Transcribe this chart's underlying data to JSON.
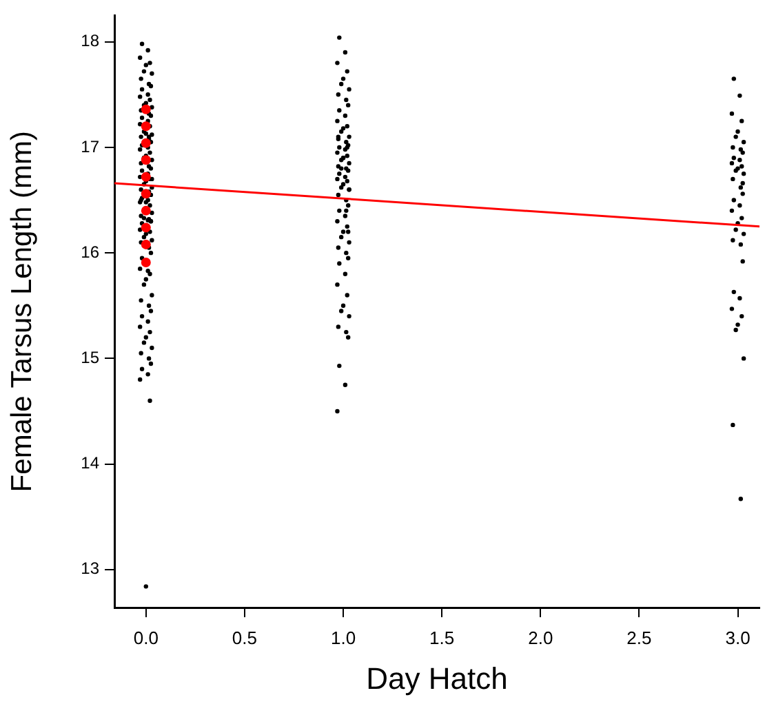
{
  "chart_data": {
    "type": "scatter",
    "xlabel": "Day Hatch",
    "ylabel": "Female Tarsus Length (mm)",
    "xlim": [
      -0.16,
      3.11
    ],
    "xticks": [
      {
        "value": 0,
        "label": "0.0"
      },
      {
        "value": 0.5,
        "label": "0.5"
      },
      {
        "value": 1,
        "label": "1.0"
      },
      {
        "value": 1.5,
        "label": "1.5"
      },
      {
        "value": 2,
        "label": "2.0"
      },
      {
        "value": 2.5,
        "label": "2.5"
      },
      {
        "value": 3,
        "label": "3.0"
      }
    ],
    "ylim": [
      12.64,
      18.25
    ],
    "yticks": [
      13,
      14,
      15,
      16,
      17,
      18
    ],
    "grid": false,
    "marker": "circle",
    "series": [
      {
        "color": "#000000",
        "x": [
          -0.02,
          0.01,
          -0.03,
          0.02,
          0.0,
          -0.01,
          0.03,
          -0.025,
          0.015,
          0.025,
          -0.02,
          0.01,
          -0.03,
          0.02,
          0.0,
          -0.01,
          0.03,
          -0.025,
          0.015,
          0.025,
          -0.02,
          0.01,
          -0.03,
          0.02,
          0.0,
          -0.01,
          0.03,
          -0.025,
          0.015,
          0.025,
          -0.02,
          0.01,
          -0.03,
          0.02,
          0.0,
          -0.01,
          0.03,
          -0.025,
          0.015,
          0.025,
          -0.02,
          0.01,
          -0.03,
          0.02,
          0.0,
          -0.01,
          0.03,
          -0.025,
          0.015,
          0.025,
          -0.02,
          0.01,
          -0.03,
          0.02,
          0.0,
          -0.01,
          0.03,
          -0.025,
          0.015,
          0.025,
          -0.02,
          0.01,
          -0.03,
          0.02,
          0.0,
          -0.01,
          0.03,
          -0.025,
          0.015,
          0.025,
          -0.02,
          0.01,
          -0.03,
          0.02,
          0.0,
          -0.01,
          0.03,
          -0.025,
          0.015,
          0.025,
          -0.02,
          0.01,
          -0.03,
          0.02,
          0.0,
          -0.01,
          0.03,
          -0.025,
          0.015,
          0.025,
          -0.02,
          0.01,
          -0.03,
          0.02,
          0.0,
          -0.01,
          0.03,
          -0.025,
          0.015,
          0.025
        ],
        "values": [
          17.98,
          17.92,
          17.85,
          17.8,
          17.78,
          17.72,
          17.7,
          17.65,
          17.6,
          17.58,
          17.55,
          17.5,
          17.48,
          17.45,
          17.42,
          17.4,
          17.38,
          17.35,
          17.32,
          17.3,
          17.28,
          17.25,
          17.22,
          17.2,
          17.13,
          17.15,
          17.12,
          17.1,
          17.08,
          17.05,
          17.02,
          17.0,
          16.98,
          16.95,
          16.92,
          16.9,
          16.88,
          16.85,
          16.82,
          16.8,
          16.78,
          16.75,
          16.72,
          16.7,
          16.68,
          16.65,
          16.62,
          16.6,
          16.58,
          16.55,
          16.52,
          16.5,
          16.48,
          16.45,
          16.48,
          16.33,
          16.38,
          16.35,
          16.32,
          16.3,
          16.28,
          16.31,
          16.22,
          16.2,
          16.18,
          16.15,
          16.12,
          16.1,
          16.05,
          16.0,
          15.95,
          15.83,
          15.85,
          15.8,
          15.75,
          15.7,
          15.6,
          15.55,
          15.5,
          15.45,
          15.4,
          15.35,
          15.3,
          15.25,
          15.2,
          15.15,
          15.1,
          15.05,
          15.0,
          14.95,
          14.9,
          14.85,
          14.8,
          14.6,
          12.84,
          16.9,
          16.7,
          16.5,
          17.1,
          16.3
        ]
      },
      {
        "color": "#000000",
        "x": [
          0.98,
          1.01,
          0.97,
          1.02,
          1.0,
          0.99,
          1.03,
          0.975,
          1.015,
          1.025,
          0.98,
          1.01,
          0.97,
          1.02,
          1.0,
          0.99,
          1.03,
          0.975,
          1.015,
          1.025,
          0.98,
          1.01,
          0.97,
          1.02,
          1.0,
          0.99,
          1.03,
          0.975,
          1.015,
          1.025,
          0.98,
          1.01,
          0.97,
          1.02,
          1.0,
          0.99,
          1.03,
          0.975,
          1.015,
          1.025,
          0.98,
          1.01,
          0.97,
          1.02,
          1.0,
          0.99,
          1.03,
          0.975,
          1.015,
          1.025,
          0.98,
          1.01,
          0.97,
          1.02,
          1.0,
          0.99,
          1.03,
          0.975,
          1.015,
          1.025,
          0.98,
          1.01,
          0.97,
          1.02,
          1.0,
          0.99,
          1.03,
          0.975,
          1.015,
          1.025
        ],
        "values": [
          18.04,
          17.9,
          17.8,
          17.72,
          17.65,
          17.6,
          17.55,
          17.5,
          17.45,
          17.4,
          17.35,
          17.3,
          17.25,
          17.2,
          17.18,
          17.15,
          17.1,
          17.08,
          17.05,
          17.02,
          17.0,
          16.98,
          16.95,
          16.92,
          16.9,
          16.88,
          16.85,
          16.82,
          16.8,
          16.78,
          16.75,
          16.72,
          16.7,
          16.68,
          16.65,
          16.62,
          16.6,
          16.55,
          16.5,
          16.45,
          16.4,
          16.35,
          16.3,
          16.25,
          16.2,
          16.15,
          16.1,
          16.05,
          16.0,
          15.95,
          15.9,
          15.8,
          15.7,
          15.6,
          15.5,
          15.45,
          15.4,
          15.3,
          15.25,
          15.2,
          14.93,
          14.75,
          14.5,
          17.0,
          16.9,
          16.8,
          16.6,
          17.1,
          16.4,
          16.2
        ]
      },
      {
        "color": "#000000",
        "x": [
          2.98,
          3.01,
          2.97,
          3.02,
          3.0,
          2.99,
          3.03,
          2.975,
          3.015,
          3.025,
          2.98,
          3.01,
          2.97,
          3.02,
          3.0,
          2.99,
          3.03,
          2.975,
          3.015,
          3.025,
          2.98,
          3.01,
          2.97,
          3.02,
          3.0,
          2.99,
          3.03,
          2.975,
          3.015,
          3.025,
          2.98,
          3.01,
          2.97,
          3.02,
          3.0,
          2.99,
          3.03,
          2.975,
          3.015,
          3.025
        ],
        "values": [
          17.65,
          17.49,
          17.32,
          17.25,
          17.15,
          17.1,
          17.05,
          17.0,
          16.98,
          16.95,
          16.9,
          16.88,
          16.85,
          16.82,
          16.8,
          16.78,
          16.75,
          16.7,
          16.62,
          16.56,
          16.5,
          16.45,
          16.4,
          16.33,
          16.28,
          16.22,
          16.18,
          16.12,
          16.08,
          15.92,
          15.63,
          15.57,
          15.47,
          15.4,
          15.32,
          15.27,
          15.0,
          14.37,
          13.67,
          16.66
        ]
      },
      {
        "type": "line",
        "marker": "none",
        "color": "#ff0000",
        "x": [
          -0.16,
          3.11
        ],
        "values": [
          16.66,
          16.25
        ]
      },
      {
        "color": "#ff0000",
        "x": [
          0,
          0,
          0,
          0,
          0,
          0,
          0,
          0,
          0,
          0
        ],
        "values": [
          17.36,
          17.2,
          17.04,
          16.88,
          16.72,
          16.56,
          16.4,
          16.24,
          16.08,
          15.91
        ]
      }
    ]
  }
}
